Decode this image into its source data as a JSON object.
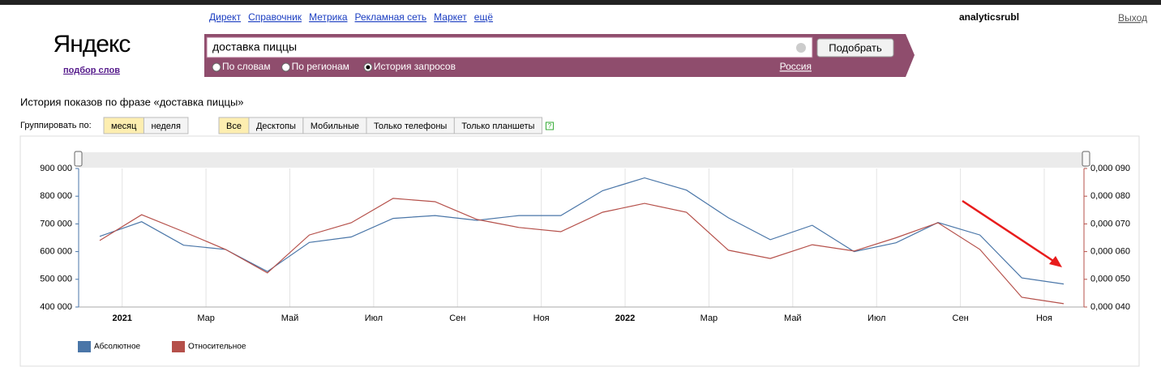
{
  "header": {
    "links": [
      "Директ",
      "Справочник",
      "Метрика",
      "Рекламная сеть",
      "Маркет",
      "ещё"
    ],
    "user": "analyticsrubl",
    "logout": "Выход",
    "logo": "Яндекс",
    "logo_sub": "подбор слов"
  },
  "search": {
    "query": "доставка пиццы",
    "button": "Подобрать",
    "modes": [
      "По словам",
      "По регионам",
      "История запросов"
    ],
    "selected_mode": 2,
    "region": "Россия"
  },
  "page_title": "История показов по фразе «доставка пиццы»",
  "group_label": "Группировать по:",
  "group_options": [
    "месяц",
    "неделя"
  ],
  "group_selected": 0,
  "device_options": [
    "Все",
    "Десктопы",
    "Мобильные",
    "Только телефоны",
    "Только планшеты"
  ],
  "device_selected": 0,
  "help": "?",
  "chart_data": {
    "type": "line",
    "categories": [
      null,
      "2021",
      null,
      "Мар",
      null,
      "Май",
      null,
      "Июл",
      null,
      "Сен",
      null,
      "Ноя",
      null,
      "2022",
      null,
      "Мар",
      null,
      "Май",
      null,
      "Июл",
      null,
      "Сен",
      null,
      "Ноя"
    ],
    "series": [
      {
        "name": "Абсолютное",
        "color": "#4a76a8",
        "values": [
          655000,
          708000,
          623000,
          608000,
          528000,
          633000,
          653000,
          720000,
          730000,
          713000,
          730000,
          730000,
          820000,
          866000,
          822000,
          722000,
          643000,
          695000,
          600000,
          632000,
          705000,
          660000,
          505000,
          483000
        ]
      },
      {
        "name": "Относительное",
        "color": "#b5504a",
        "axis": "y2",
        "values": [
          6.4e-05,
          7.33e-05,
          6.72e-05,
          6.08e-05,
          5.23e-05,
          6.6e-05,
          7.04e-05,
          7.92e-05,
          7.8e-05,
          7.16e-05,
          6.87e-05,
          6.72e-05,
          7.42e-05,
          7.74e-05,
          7.42e-05,
          6.05e-05,
          5.75e-05,
          6.25e-05,
          6.02e-05,
          6.5e-05,
          7.04e-05,
          6.08e-05,
          4.35e-05,
          4.12e-05
        ]
      }
    ],
    "ylim": [
      400000,
      900000
    ],
    "yticks": [
      {
        "value": 400000,
        "label": "400 000"
      },
      {
        "value": 500000,
        "label": "500 000"
      },
      {
        "value": 600000,
        "label": "600 000"
      },
      {
        "value": 700000,
        "label": "700 000"
      },
      {
        "value": 800000,
        "label": "800 000"
      },
      {
        "value": 900000,
        "label": "900 000"
      }
    ],
    "y2lim": [
      4e-05,
      9e-05
    ],
    "y2ticks": [
      {
        "value": 4e-05,
        "label": "0,000 040"
      },
      {
        "value": 5e-05,
        "label": "0,000 050"
      },
      {
        "value": 6e-05,
        "label": "0,000 060"
      },
      {
        "value": 7e-05,
        "label": "0,000 070"
      },
      {
        "value": 8e-05,
        "label": "0,000 080"
      },
      {
        "value": 9e-05,
        "label": "0,000 090"
      }
    ],
    "grid": "x"
  }
}
